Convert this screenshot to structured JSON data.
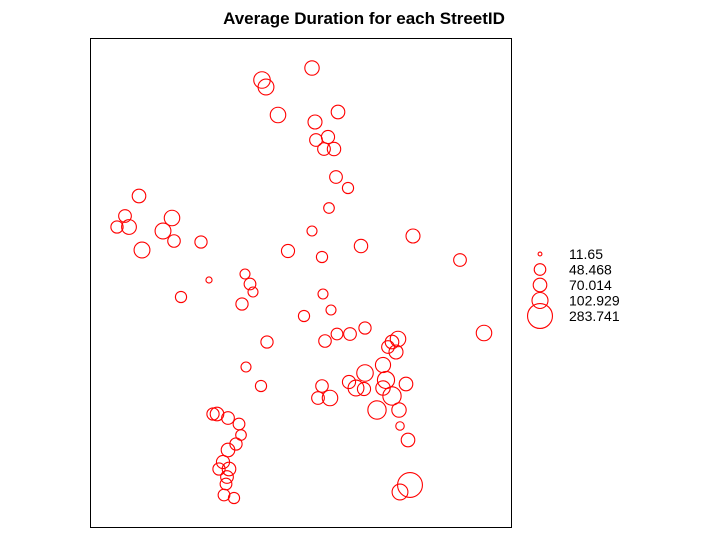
{
  "chart_data": {
    "type": "scatter",
    "title": "Average Duration for each StreetID",
    "xlabel": "",
    "ylabel": "",
    "grid": false,
    "axes_shown": false,
    "legend_position": "right",
    "colors": {
      "marker": "#ff0000",
      "frame": "#000000"
    },
    "xlim": [
      90,
      512
    ],
    "ylim": [
      38,
      528
    ],
    "legend": [
      {
        "label": "11.65",
        "value": 11.65
      },
      {
        "label": "48.468",
        "value": 48.468
      },
      {
        "label": "70.014",
        "value": 70.014
      },
      {
        "label": "102.929",
        "value": 102.929
      },
      {
        "label": "283.741",
        "value": 283.741
      }
    ],
    "points": [
      {
        "x": 262,
        "y": 80,
        "v": 110
      },
      {
        "x": 266,
        "y": 87,
        "v": 100
      },
      {
        "x": 312,
        "y": 68,
        "v": 80
      },
      {
        "x": 278,
        "y": 115,
        "v": 95
      },
      {
        "x": 338,
        "y": 112,
        "v": 70
      },
      {
        "x": 315,
        "y": 122,
        "v": 75
      },
      {
        "x": 328,
        "y": 137,
        "v": 65
      },
      {
        "x": 316,
        "y": 140,
        "v": 60
      },
      {
        "x": 334,
        "y": 149,
        "v": 68
      },
      {
        "x": 324,
        "y": 149,
        "v": 60
      },
      {
        "x": 336,
        "y": 177,
        "v": 60
      },
      {
        "x": 348,
        "y": 188,
        "v": 45
      },
      {
        "x": 329,
        "y": 208,
        "v": 40
      },
      {
        "x": 312,
        "y": 231,
        "v": 35
      },
      {
        "x": 139,
        "y": 196,
        "v": 70
      },
      {
        "x": 125,
        "y": 216,
        "v": 60
      },
      {
        "x": 172,
        "y": 218,
        "v": 95
      },
      {
        "x": 117,
        "y": 227,
        "v": 55
      },
      {
        "x": 129,
        "y": 227,
        "v": 85
      },
      {
        "x": 163,
        "y": 231,
        "v": 100
      },
      {
        "x": 174,
        "y": 241,
        "v": 58
      },
      {
        "x": 201,
        "y": 242,
        "v": 55
      },
      {
        "x": 142,
        "y": 250,
        "v": 100
      },
      {
        "x": 288,
        "y": 251,
        "v": 65
      },
      {
        "x": 361,
        "y": 246,
        "v": 68
      },
      {
        "x": 413,
        "y": 236,
        "v": 75
      },
      {
        "x": 322,
        "y": 257,
        "v": 45
      },
      {
        "x": 460,
        "y": 260,
        "v": 60
      },
      {
        "x": 245,
        "y": 274,
        "v": 35
      },
      {
        "x": 209,
        "y": 280,
        "v": 15
      },
      {
        "x": 250,
        "y": 284,
        "v": 50
      },
      {
        "x": 253,
        "y": 292,
        "v": 35
      },
      {
        "x": 323,
        "y": 294,
        "v": 35
      },
      {
        "x": 181,
        "y": 297,
        "v": 45
      },
      {
        "x": 242,
        "y": 304,
        "v": 55
      },
      {
        "x": 331,
        "y": 310,
        "v": 35
      },
      {
        "x": 304,
        "y": 316,
        "v": 45
      },
      {
        "x": 484,
        "y": 333,
        "v": 95
      },
      {
        "x": 365,
        "y": 328,
        "v": 55
      },
      {
        "x": 337,
        "y": 334,
        "v": 50
      },
      {
        "x": 350,
        "y": 334,
        "v": 60
      },
      {
        "x": 267,
        "y": 342,
        "v": 55
      },
      {
        "x": 325,
        "y": 341,
        "v": 58
      },
      {
        "x": 398,
        "y": 339,
        "v": 95
      },
      {
        "x": 392,
        "y": 342,
        "v": 70
      },
      {
        "x": 388,
        "y": 347,
        "v": 60
      },
      {
        "x": 396,
        "y": 352,
        "v": 75
      },
      {
        "x": 246,
        "y": 367,
        "v": 35
      },
      {
        "x": 383,
        "y": 365,
        "v": 90
      },
      {
        "x": 365,
        "y": 373,
        "v": 110
      },
      {
        "x": 261,
        "y": 386,
        "v": 45
      },
      {
        "x": 322,
        "y": 386,
        "v": 58
      },
      {
        "x": 349,
        "y": 382,
        "v": 65
      },
      {
        "x": 356,
        "y": 388,
        "v": 100
      },
      {
        "x": 386,
        "y": 380,
        "v": 120
      },
      {
        "x": 383,
        "y": 388,
        "v": 80
      },
      {
        "x": 406,
        "y": 384,
        "v": 70
      },
      {
        "x": 364,
        "y": 389,
        "v": 65
      },
      {
        "x": 318,
        "y": 398,
        "v": 60
      },
      {
        "x": 330,
        "y": 398,
        "v": 95
      },
      {
        "x": 392,
        "y": 396,
        "v": 140
      },
      {
        "x": 377,
        "y": 410,
        "v": 140
      },
      {
        "x": 399,
        "y": 410,
        "v": 80
      },
      {
        "x": 213,
        "y": 414,
        "v": 55
      },
      {
        "x": 217,
        "y": 414,
        "v": 70
      },
      {
        "x": 228,
        "y": 418,
        "v": 60
      },
      {
        "x": 239,
        "y": 424,
        "v": 50
      },
      {
        "x": 400,
        "y": 426,
        "v": 25
      },
      {
        "x": 236,
        "y": 444,
        "v": 55
      },
      {
        "x": 241,
        "y": 435,
        "v": 40
      },
      {
        "x": 228,
        "y": 450,
        "v": 70
      },
      {
        "x": 408,
        "y": 440,
        "v": 70
      },
      {
        "x": 223,
        "y": 462,
        "v": 65
      },
      {
        "x": 219,
        "y": 469,
        "v": 55
      },
      {
        "x": 229,
        "y": 469,
        "v": 70
      },
      {
        "x": 227,
        "y": 477,
        "v": 60
      },
      {
        "x": 226,
        "y": 484,
        "v": 50
      },
      {
        "x": 224,
        "y": 495,
        "v": 50
      },
      {
        "x": 234,
        "y": 498,
        "v": 45
      },
      {
        "x": 410,
        "y": 485,
        "v": 283
      },
      {
        "x": 400,
        "y": 492,
        "v": 100
      }
    ]
  }
}
